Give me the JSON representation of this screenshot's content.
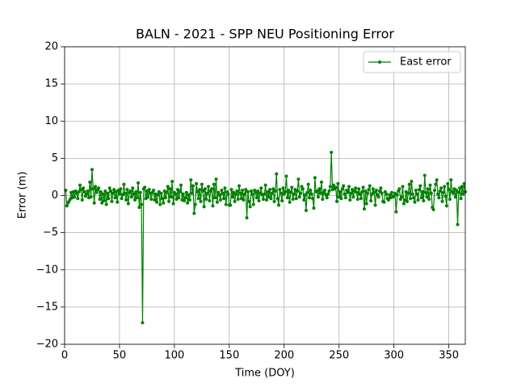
{
  "chart_data": {
    "type": "line",
    "title": "BALN - 2021 - SPP NEU Positioning Error",
    "x_label": "Time (DOY)",
    "y_label": "Error (m)",
    "xlim": [
      0,
      365
    ],
    "ylim": [
      -20,
      20
    ],
    "xticks": [
      0,
      50,
      100,
      150,
      200,
      250,
      300,
      350
    ],
    "yticks": [
      {
        "value": -20,
        "label": "−20"
      },
      {
        "value": -15,
        "label": "−15"
      },
      {
        "value": -10,
        "label": "−10"
      },
      {
        "value": -5,
        "label": "−5"
      },
      0,
      5,
      10,
      15,
      20
    ],
    "grid": true,
    "legend": "upper right",
    "x": [
      1,
      2,
      3,
      4,
      5,
      6,
      7,
      8,
      9,
      10,
      11,
      12,
      13,
      14,
      15,
      16,
      17,
      18,
      19,
      20,
      21,
      22,
      23,
      24,
      25,
      26,
      27,
      28,
      29,
      30,
      31,
      32,
      33,
      34,
      35,
      36,
      37,
      38,
      39,
      40,
      41,
      42,
      43,
      44,
      45,
      46,
      47,
      48,
      49,
      50,
      51,
      52,
      53,
      54,
      55,
      56,
      57,
      58,
      59,
      60,
      61,
      62,
      63,
      64,
      65,
      66,
      67,
      68,
      69,
      70,
      71,
      72,
      73,
      74,
      75,
      76,
      77,
      78,
      79,
      80,
      81,
      82,
      83,
      84,
      85,
      86,
      87,
      88,
      89,
      90,
      91,
      92,
      93,
      94,
      95,
      96,
      97,
      98,
      99,
      100,
      101,
      102,
      103,
      104,
      105,
      106,
      107,
      108,
      109,
      110,
      111,
      112,
      113,
      114,
      115,
      116,
      117,
      118,
      119,
      120,
      121,
      122,
      123,
      124,
      125,
      126,
      127,
      128,
      129,
      130,
      131,
      132,
      133,
      134,
      135,
      136,
      137,
      138,
      139,
      140,
      141,
      142,
      143,
      144,
      145,
      146,
      147,
      148,
      149,
      150,
      151,
      152,
      153,
      154,
      155,
      156,
      157,
      158,
      159,
      160,
      161,
      162,
      163,
      164,
      165,
      166,
      167,
      168,
      169,
      170,
      171,
      172,
      173,
      174,
      175,
      176,
      177,
      178,
      179,
      180,
      181,
      182,
      183,
      184,
      185,
      186,
      187,
      188,
      189,
      190,
      191,
      192,
      193,
      194,
      195,
      196,
      197,
      198,
      199,
      200,
      201,
      202,
      203,
      204,
      205,
      206,
      207,
      208,
      209,
      210,
      211,
      212,
      213,
      214,
      215,
      216,
      217,
      218,
      219,
      220,
      221,
      222,
      223,
      224,
      225,
      226,
      227,
      228,
      229,
      230,
      231,
      232,
      233,
      234,
      235,
      236,
      237,
      238,
      239,
      240,
      241,
      242,
      243,
      244,
      245,
      246,
      247,
      248,
      249,
      250,
      251,
      252,
      253,
      254,
      255,
      256,
      257,
      258,
      259,
      260,
      261,
      262,
      263,
      264,
      265,
      266,
      267,
      268,
      269,
      270,
      271,
      272,
      273,
      274,
      275,
      276,
      277,
      278,
      279,
      280,
      281,
      282,
      283,
      284,
      285,
      286,
      287,
      288,
      289,
      290,
      291,
      292,
      293,
      294,
      295,
      296,
      297,
      298,
      299,
      300,
      301,
      302,
      303,
      304,
      305,
      306,
      307,
      308,
      309,
      310,
      311,
      312,
      313,
      314,
      315,
      316,
      317,
      318,
      319,
      320,
      321,
      322,
      323,
      324,
      325,
      326,
      327,
      328,
      329,
      330,
      331,
      332,
      333,
      334,
      335,
      336,
      337,
      338,
      339,
      340,
      341,
      342,
      343,
      344,
      345,
      346,
      347,
      348,
      349,
      350,
      351,
      352,
      353,
      354,
      355,
      356,
      357,
      358,
      359,
      360,
      361,
      362,
      363,
      364,
      365
    ],
    "series": [
      {
        "name": "East error",
        "color": "#008000",
        "values": [
          0.7,
          -1.4,
          -1.0,
          -0.8,
          -0.5,
          0.4,
          -0.3,
          0.5,
          -0.2,
          0.6,
          0.3,
          -0.4,
          0.5,
          1.4,
          0.8,
          -0.6,
          1.0,
          0.5,
          -0.1,
          0.2,
          0.6,
          -0.3,
          1.8,
          -0.2,
          3.5,
          0.9,
          -1.0,
          1.2,
          0.4,
          0.8,
          1.0,
          -0.5,
          0.5,
          -1.0,
          0.2,
          -0.7,
          0.6,
          -1.2,
          0.3,
          -0.4,
          1.0,
          0.6,
          -0.8,
          0.3,
          0.8,
          -0.3,
          0.5,
          -0.9,
          0.7,
          0.2,
          0.9,
          -0.4,
          0.1,
          1.5,
          0.3,
          -0.6,
          0.8,
          -1.1,
          0.4,
          0.6,
          -0.2,
          1.0,
          0.2,
          -0.6,
          0.5,
          -0.3,
          1.7,
          -1.6,
          0.4,
          -1.2,
          -17.1,
          0.9,
          1.1,
          -0.4,
          0.6,
          -0.2,
          0.8,
          0.3,
          -0.5,
          0.4,
          0.7,
          -0.6,
          0.2,
          -0.9,
          0.1,
          0.5,
          -1.2,
          0.3,
          -0.4,
          -1.0,
          0.6,
          -0.3,
          0.4,
          1.2,
          -0.8,
          0.9,
          -0.2,
          1.9,
          -1.1,
          0.4,
          0.2,
          -0.5,
          0.8,
          -0.3,
          0.5,
          1.4,
          -0.6,
          0.2,
          -0.7,
          -0.3,
          0.4,
          -1.0,
          0.1,
          -0.6,
          2.1,
          0.3,
          1.3,
          -2.4,
          -1.2,
          1.6,
          0.5,
          -0.4,
          0.8,
          -0.8,
          1.5,
          0.6,
          -1.5,
          0.9,
          -0.5,
          0.3,
          1.2,
          -0.7,
          0.6,
          0.9,
          -1.4,
          1.5,
          -0.3,
          2.2,
          -0.9,
          0.4,
          0.1,
          -0.6,
          0.7,
          0.3,
          -0.4,
          1.0,
          -1.2,
          0.5,
          0.2,
          -1.3,
          -1.3,
          0.8,
          -0.2,
          0.4,
          -0.8,
          0.2,
          0.6,
          -0.5,
          1.3,
          0.3,
          -0.4,
          0.7,
          -0.6,
          0.2,
          0.8,
          -3.0,
          0.5,
          -0.8,
          -1.5,
          0.6,
          0.2,
          -1.2,
          0.7,
          0.4,
          -0.3,
          0.6,
          -0.7,
          0.3,
          1.0,
          0.1,
          -0.5,
          0.2,
          1.4,
          -0.6,
          0.5,
          -0.2,
          0.8,
          -0.4,
          0.3,
          0.9,
          -0.8,
          0.6,
          2.9,
          -0.4,
          -1.3,
          0.8,
          0.3,
          -0.7,
          1.0,
          0.2,
          0.5,
          2.6,
          -0.3,
          0.7,
          -0.9,
          0.4,
          1.1,
          -0.5,
          0.2,
          0.8,
          -0.4,
          0.6,
          2.2,
          -0.2,
          0.3,
          1.2,
          0.9,
          -0.6,
          0.1,
          -2.0,
          0.4,
          1.5,
          -0.3,
          0.7,
          0.2,
          -0.4,
          -1.7,
          2.4,
          0.5,
          0.6,
          -0.2,
          0.9,
          0.3,
          1.8,
          -0.5,
          0.4,
          0.7,
          0.1,
          -0.3,
          0.2,
          0.6,
          1.2,
          5.8,
          0.8,
          1.4,
          0.9,
          1.1,
          -0.8,
          1.6,
          -0.2,
          0.5,
          -0.4,
          0.9,
          1.3,
          0.2,
          -0.3,
          0.7,
          0.4,
          1.2,
          -0.6,
          0.3,
          0.8,
          -0.2,
          0.6,
          1.0,
          0.4,
          -0.5,
          0.9,
          0.2,
          -0.4,
          0.5,
          1.1,
          -1.8,
          0.6,
          -1.1,
          0.3,
          0.8,
          1.3,
          -0.7,
          0.2,
          0.9,
          0.4,
          -1.3,
          0.7,
          0.1,
          -0.2,
          0.6,
          1.0,
          0.3,
          -0.8,
          -0.9,
          0.5,
          0.2,
          -0.4,
          -0.6,
          0.1,
          -0.3,
          0.4,
          -0.2,
          -0.1,
          0.3,
          -2.2,
          0.1,
          0.6,
          0.9,
          -0.5,
          -0.2,
          1.2,
          -1.1,
          -0.6,
          0.5,
          -0.8,
          0.3,
          1.5,
          -0.4,
          1.9,
          0.2,
          -0.3,
          -0.9,
          0.7,
          0.2,
          -0.6,
          0.8,
          1.3,
          -0.3,
          0.5,
          -0.7,
          2.7,
          0.4,
          -0.2,
          0.9,
          -0.5,
          1.4,
          0.3,
          -1.6,
          -1.9,
          0.7,
          1.5,
          2.1,
          0.2,
          -0.3,
          0.6,
          1.0,
          -0.8,
          0.4,
          1.2,
          -0.1,
          -1.4,
          1.6,
          0.8,
          -0.5,
          2.1,
          0.5,
          0.3,
          0.9,
          -0.2,
          0.7,
          -3.9,
          0.4,
          1.0,
          -0.4,
          1.2,
          0.2,
          1.6,
          0.5
        ]
      }
    ]
  }
}
